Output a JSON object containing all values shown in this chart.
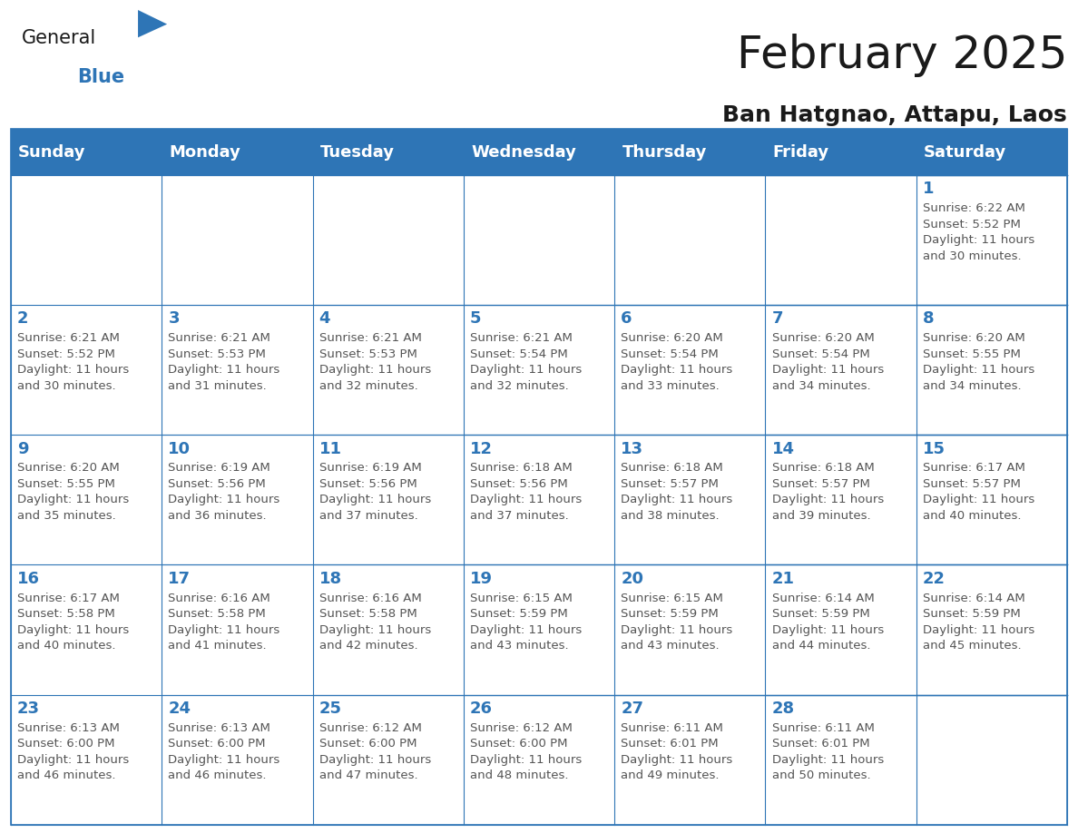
{
  "title": "February 2025",
  "subtitle": "Ban Hatgnao, Attapu, Laos",
  "header_bg": "#2E75B6",
  "header_text_color": "#FFFFFF",
  "cell_border_color": "#2E75B6",
  "day_number_color": "#2E75B6",
  "info_text_color": "#555555",
  "background_color": "#FFFFFF",
  "days_of_week": [
    "Sunday",
    "Monday",
    "Tuesday",
    "Wednesday",
    "Thursday",
    "Friday",
    "Saturday"
  ],
  "weeks": [
    [
      {
        "day": null,
        "info": null
      },
      {
        "day": null,
        "info": null
      },
      {
        "day": null,
        "info": null
      },
      {
        "day": null,
        "info": null
      },
      {
        "day": null,
        "info": null
      },
      {
        "day": null,
        "info": null
      },
      {
        "day": 1,
        "info": "Sunrise: 6:22 AM\nSunset: 5:52 PM\nDaylight: 11 hours\nand 30 minutes."
      }
    ],
    [
      {
        "day": 2,
        "info": "Sunrise: 6:21 AM\nSunset: 5:52 PM\nDaylight: 11 hours\nand 30 minutes."
      },
      {
        "day": 3,
        "info": "Sunrise: 6:21 AM\nSunset: 5:53 PM\nDaylight: 11 hours\nand 31 minutes."
      },
      {
        "day": 4,
        "info": "Sunrise: 6:21 AM\nSunset: 5:53 PM\nDaylight: 11 hours\nand 32 minutes."
      },
      {
        "day": 5,
        "info": "Sunrise: 6:21 AM\nSunset: 5:54 PM\nDaylight: 11 hours\nand 32 minutes."
      },
      {
        "day": 6,
        "info": "Sunrise: 6:20 AM\nSunset: 5:54 PM\nDaylight: 11 hours\nand 33 minutes."
      },
      {
        "day": 7,
        "info": "Sunrise: 6:20 AM\nSunset: 5:54 PM\nDaylight: 11 hours\nand 34 minutes."
      },
      {
        "day": 8,
        "info": "Sunrise: 6:20 AM\nSunset: 5:55 PM\nDaylight: 11 hours\nand 34 minutes."
      }
    ],
    [
      {
        "day": 9,
        "info": "Sunrise: 6:20 AM\nSunset: 5:55 PM\nDaylight: 11 hours\nand 35 minutes."
      },
      {
        "day": 10,
        "info": "Sunrise: 6:19 AM\nSunset: 5:56 PM\nDaylight: 11 hours\nand 36 minutes."
      },
      {
        "day": 11,
        "info": "Sunrise: 6:19 AM\nSunset: 5:56 PM\nDaylight: 11 hours\nand 37 minutes."
      },
      {
        "day": 12,
        "info": "Sunrise: 6:18 AM\nSunset: 5:56 PM\nDaylight: 11 hours\nand 37 minutes."
      },
      {
        "day": 13,
        "info": "Sunrise: 6:18 AM\nSunset: 5:57 PM\nDaylight: 11 hours\nand 38 minutes."
      },
      {
        "day": 14,
        "info": "Sunrise: 6:18 AM\nSunset: 5:57 PM\nDaylight: 11 hours\nand 39 minutes."
      },
      {
        "day": 15,
        "info": "Sunrise: 6:17 AM\nSunset: 5:57 PM\nDaylight: 11 hours\nand 40 minutes."
      }
    ],
    [
      {
        "day": 16,
        "info": "Sunrise: 6:17 AM\nSunset: 5:58 PM\nDaylight: 11 hours\nand 40 minutes."
      },
      {
        "day": 17,
        "info": "Sunrise: 6:16 AM\nSunset: 5:58 PM\nDaylight: 11 hours\nand 41 minutes."
      },
      {
        "day": 18,
        "info": "Sunrise: 6:16 AM\nSunset: 5:58 PM\nDaylight: 11 hours\nand 42 minutes."
      },
      {
        "day": 19,
        "info": "Sunrise: 6:15 AM\nSunset: 5:59 PM\nDaylight: 11 hours\nand 43 minutes."
      },
      {
        "day": 20,
        "info": "Sunrise: 6:15 AM\nSunset: 5:59 PM\nDaylight: 11 hours\nand 43 minutes."
      },
      {
        "day": 21,
        "info": "Sunrise: 6:14 AM\nSunset: 5:59 PM\nDaylight: 11 hours\nand 44 minutes."
      },
      {
        "day": 22,
        "info": "Sunrise: 6:14 AM\nSunset: 5:59 PM\nDaylight: 11 hours\nand 45 minutes."
      }
    ],
    [
      {
        "day": 23,
        "info": "Sunrise: 6:13 AM\nSunset: 6:00 PM\nDaylight: 11 hours\nand 46 minutes."
      },
      {
        "day": 24,
        "info": "Sunrise: 6:13 AM\nSunset: 6:00 PM\nDaylight: 11 hours\nand 46 minutes."
      },
      {
        "day": 25,
        "info": "Sunrise: 6:12 AM\nSunset: 6:00 PM\nDaylight: 11 hours\nand 47 minutes."
      },
      {
        "day": 26,
        "info": "Sunrise: 6:12 AM\nSunset: 6:00 PM\nDaylight: 11 hours\nand 48 minutes."
      },
      {
        "day": 27,
        "info": "Sunrise: 6:11 AM\nSunset: 6:01 PM\nDaylight: 11 hours\nand 49 minutes."
      },
      {
        "day": 28,
        "info": "Sunrise: 6:11 AM\nSunset: 6:01 PM\nDaylight: 11 hours\nand 50 minutes."
      },
      {
        "day": null,
        "info": null
      }
    ]
  ],
  "logo_general_color": "#1a1a1a",
  "logo_blue_color": "#2E75B6",
  "title_fontsize": 36,
  "subtitle_fontsize": 18,
  "header_fontsize": 13,
  "day_number_fontsize": 13,
  "info_fontsize": 9.5
}
